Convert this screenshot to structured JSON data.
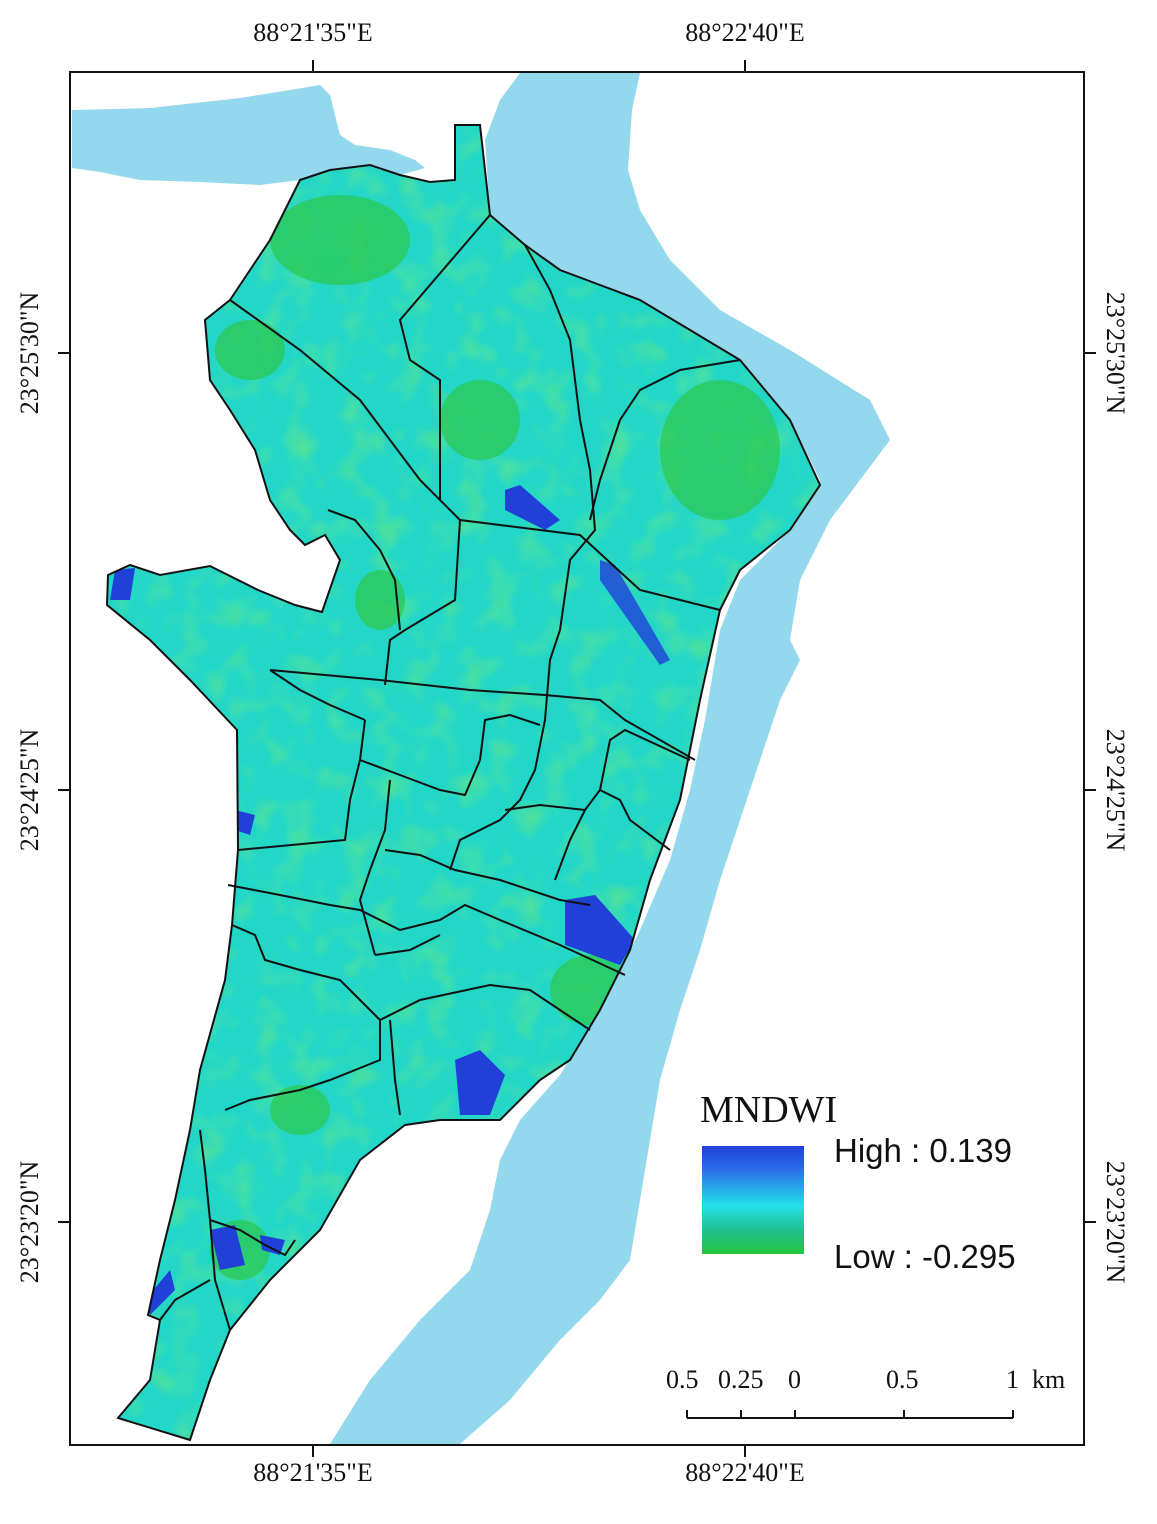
{
  "map": {
    "top_labels": [
      "88°21'35\"E",
      "88°22'40\"E"
    ],
    "bottom_labels": [
      "88°21'35\"E",
      "88°22'40\"E"
    ],
    "left_labels": [
      "23°25'30\"N",
      "23°24'25\"N",
      "23°23'20\"N"
    ],
    "right_labels": [
      "23°25'30\"N",
      "23°24'25\"N",
      "23°23'20\"N"
    ],
    "colors": {
      "river": "#94d8ee",
      "land_low": "#26c43a",
      "land_mid": "#22d6c8",
      "land_high": "#2040d8",
      "boundary": "#111111"
    }
  },
  "legend": {
    "title": "MNDWI",
    "high": "High : 0.139",
    "low": "Low : -0.295",
    "high_value": 0.139,
    "low_value": -0.295
  },
  "scalebar": {
    "labels": [
      "0.5",
      "0.25",
      "0",
      "0.5",
      "1"
    ],
    "unit": "km"
  }
}
